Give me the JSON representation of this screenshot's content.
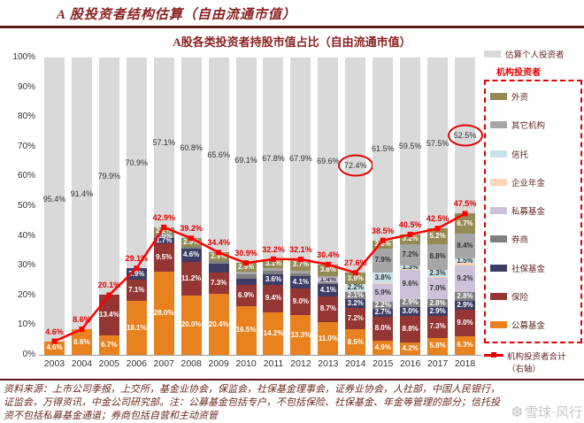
{
  "page": {
    "header_title": "A 股投资者结构估算（自由流通市值）",
    "watermark": "雪球·风行"
  },
  "chart_data": {
    "type": "stacked-bar-line",
    "title": "A股各类投资者持股市值占比（自由流通市值）",
    "y_axis": {
      "min": 0,
      "max": 100,
      "step": 10,
      "suffix": "%"
    },
    "grid": false,
    "legend_position": "right",
    "categories": [
      "2003",
      "2004",
      "2005",
      "2006",
      "2007",
      "2008",
      "2009",
      "2010",
      "2011",
      "2012",
      "2013",
      "2014",
      "2015",
      "2016",
      "2017",
      "2018"
    ],
    "stack_order_bottom_to_top": [
      "公募基金",
      "保险",
      "社保基金",
      "券商",
      "私募基金",
      "企业年金",
      "信托",
      "其它机构",
      "外资",
      "估算个人投资者"
    ],
    "colors": {
      "估算个人投资者": "#D9D9D9",
      "外资": "#948A54",
      "其它机构": "#A6A6A6",
      "信托": "#C9E2E8",
      "企业年金": "#FBD5B5",
      "私募基金": "#CCC1D9",
      "券商": "#7F7F7F",
      "社保基金": "#3D3D66",
      "保险": "#943634",
      "公募基金": "#E8821F",
      "line": "#FF0000",
      "line_label": "#E60000",
      "title": "#8B2222"
    },
    "dark_text_categories": [
      "信托",
      "企业年金",
      "私募基金",
      "其它机构"
    ],
    "bars": [
      {
        "year": "2003",
        "individual_label": "95.4%",
        "segments": [
          {
            "name": "公募基金",
            "value": 4.6,
            "label": "4.6%"
          }
        ]
      },
      {
        "year": "2004",
        "individual_label": "91.4%",
        "segments": [
          {
            "name": "公募基金",
            "value": 8.6,
            "label": "8.6%"
          }
        ]
      },
      {
        "year": "2005",
        "individual_label": "79.9%",
        "segments": [
          {
            "name": "公募基金",
            "value": 6.7,
            "label": "6.7%"
          },
          {
            "name": "保险",
            "value": 13.4,
            "label": "13.4%"
          }
        ]
      },
      {
        "year": "2006",
        "individual_label": "70.9%",
        "segments": [
          {
            "name": "公募基金",
            "value": 18.1,
            "label": "18.1%"
          },
          {
            "name": "保险",
            "value": 7.1,
            "label": "7.1%"
          },
          {
            "name": "社保基金",
            "value": 3.9,
            "label": "3.9%"
          }
        ]
      },
      {
        "year": "2007",
        "individual_label": "57.1%",
        "segments": [
          {
            "name": "公募基金",
            "value": 28.0,
            "label": "28.0%"
          },
          {
            "name": "保险",
            "value": 9.5,
            "label": "9.5%"
          },
          {
            "name": "社保基金",
            "value": 1.7,
            "label": "1.7%"
          },
          {
            "name": "券商",
            "value": 1.5,
            "label": "1.5%"
          },
          {
            "name": "外资",
            "value": 2.2,
            "label": "2.2%"
          }
        ]
      },
      {
        "year": "2008",
        "individual_label": "60.8%",
        "segments": [
          {
            "name": "公募基金",
            "value": 20.0,
            "label": "20.0%"
          },
          {
            "name": "保险",
            "value": 11.2,
            "label": "11.2%"
          },
          {
            "name": "社保基金",
            "value": 4.6,
            "label": "4.6%"
          },
          {
            "name": "券商",
            "value": 0.5,
            "label": ""
          },
          {
            "name": "外资",
            "value": 2.9,
            "label": "2.9%"
          }
        ]
      },
      {
        "year": "2009",
        "individual_label": "65.6%",
        "segments": [
          {
            "name": "公募基金",
            "value": 20.4,
            "label": "20.4%"
          },
          {
            "name": "保险",
            "value": 7.3,
            "label": "7.3%"
          },
          {
            "name": "社保基金",
            "value": 3.0,
            "label": ""
          },
          {
            "name": "券商",
            "value": 0.8,
            "label": ""
          },
          {
            "name": "外资",
            "value": 2.9,
            "label": "2.9%"
          }
        ]
      },
      {
        "year": "2010",
        "individual_label": "69.1%",
        "segments": [
          {
            "name": "公募基金",
            "value": 16.5,
            "label": "16.5%"
          },
          {
            "name": "保险",
            "value": 6.9,
            "label": "6.9%"
          },
          {
            "name": "社保基金",
            "value": 2.3,
            "label": ""
          },
          {
            "name": "券商",
            "value": 1.3,
            "label": ""
          },
          {
            "name": "其它机构",
            "value": 1.0,
            "label": ""
          },
          {
            "name": "外资",
            "value": 2.9,
            "label": "2.9%"
          }
        ]
      },
      {
        "year": "2011",
        "individual_label": "67.8%",
        "segments": [
          {
            "name": "公募基金",
            "value": 14.2,
            "label": "14.2%"
          },
          {
            "name": "保险",
            "value": 9.4,
            "label": "9.4%"
          },
          {
            "name": "社保基金",
            "value": 3.6,
            "label": "3.6%"
          },
          {
            "name": "券商",
            "value": 1.0,
            "label": ""
          },
          {
            "name": "其它机构",
            "value": 0.9,
            "label": ""
          },
          {
            "name": "外资",
            "value": 3.1,
            "label": "3.1%"
          }
        ]
      },
      {
        "year": "2012",
        "individual_label": "67.9%",
        "segments": [
          {
            "name": "公募基金",
            "value": 13.3,
            "label": "13.3%"
          },
          {
            "name": "保险",
            "value": 9.0,
            "label": "9.0%"
          },
          {
            "name": "社保基金",
            "value": 4.1,
            "label": "4.1%"
          },
          {
            "name": "券商",
            "value": 1.0,
            "label": ""
          },
          {
            "name": "其它机构",
            "value": 1.0,
            "label": ""
          },
          {
            "name": "外资",
            "value": 3.7,
            "label": "3.7%"
          }
        ]
      },
      {
        "year": "2013",
        "individual_label": "69.6%",
        "segments": [
          {
            "name": "公募基金",
            "value": 11.0,
            "label": "11.0%"
          },
          {
            "name": "保险",
            "value": 8.7,
            "label": "8.7%"
          },
          {
            "name": "社保基金",
            "value": 4.1,
            "label": "4.1%"
          },
          {
            "name": "券商",
            "value": 0.7,
            "label": ""
          },
          {
            "name": "私募基金",
            "value": 1.4,
            "label": "1.4%"
          },
          {
            "name": "其它机构",
            "value": 0.7,
            "label": ""
          },
          {
            "name": "外资",
            "value": 3.8,
            "label": "3.8%"
          }
        ]
      },
      {
        "year": "2014",
        "individual_label": "72.4%",
        "segments": [
          {
            "name": "公募基金",
            "value": 8.5,
            "label": "8.5%"
          },
          {
            "name": "保险",
            "value": 7.2,
            "label": "7.2%"
          },
          {
            "name": "社保基金",
            "value": 3.2,
            "label": "3.2%"
          },
          {
            "name": "券商",
            "value": 2.1,
            "label": "2.1%"
          },
          {
            "name": "私募基金",
            "value": 0.5,
            "label": ""
          },
          {
            "name": "信托",
            "value": 2.2,
            "label": "2.2%"
          },
          {
            "name": "外资",
            "value": 3.9,
            "label": "3.9%"
          }
        ]
      },
      {
        "year": "2015",
        "individual_label": "61.5%",
        "segments": [
          {
            "name": "公募基金",
            "value": 4.9,
            "label": "4.9%"
          },
          {
            "name": "保险",
            "value": 8.0,
            "label": "8.0%"
          },
          {
            "name": "社保基金",
            "value": 2.7,
            "label": "2.7%"
          },
          {
            "name": "券商",
            "value": 2.2,
            "label": "2.2%"
          },
          {
            "name": "私募基金",
            "value": 5.9,
            "label": "5.9%"
          },
          {
            "name": "企业年金",
            "value": 0.3,
            "label": ""
          },
          {
            "name": "信托",
            "value": 3.8,
            "label": "3.8%"
          },
          {
            "name": "其它机构",
            "value": 7.9,
            "label": "7.9%"
          },
          {
            "name": "外资",
            "value": 2.8,
            "label": "2.8%"
          }
        ]
      },
      {
        "year": "2016",
        "individual_label": "59.5%",
        "segments": [
          {
            "name": "公募基金",
            "value": 4.2,
            "label": "4.2%"
          },
          {
            "name": "保险",
            "value": 8.8,
            "label": "8.8%"
          },
          {
            "name": "社保基金",
            "value": 3.0,
            "label": "3.0%"
          },
          {
            "name": "券商",
            "value": 2.9,
            "label": "2.9%"
          },
          {
            "name": "私募基金",
            "value": 9.6,
            "label": "9.6%"
          },
          {
            "name": "企业年金",
            "value": 0.3,
            "label": ""
          },
          {
            "name": "信托",
            "value": 1.3,
            "label": "1.3%"
          },
          {
            "name": "其它机构",
            "value": 7.2,
            "label": "7.2%"
          },
          {
            "name": "外资",
            "value": 3.2,
            "label": "3.2%"
          }
        ]
      },
      {
        "year": "2017",
        "individual_label": "57.5%",
        "segments": [
          {
            "name": "公募基金",
            "value": 5.8,
            "label": "5.8%"
          },
          {
            "name": "保险",
            "value": 7.3,
            "label": "7.3%"
          },
          {
            "name": "社保基金",
            "value": 2.9,
            "label": "2.9%"
          },
          {
            "name": "券商",
            "value": 2.8,
            "label": "2.8%"
          },
          {
            "name": "私募基金",
            "value": 7.0,
            "label": "7.0%"
          },
          {
            "name": "企业年金",
            "value": 0.4,
            "label": ""
          },
          {
            "name": "信托",
            "value": 2.3,
            "label": "2.3%"
          },
          {
            "name": "其它机构",
            "value": 8.8,
            "label": "8.8%"
          },
          {
            "name": "外资",
            "value": 5.2,
            "label": "5.2%"
          }
        ]
      },
      {
        "year": "2018",
        "individual_label": "52.5%",
        "segments": [
          {
            "name": "公募基金",
            "value": 6.3,
            "label": "6.3%"
          },
          {
            "name": "保险",
            "value": 9.0,
            "label": "9.0%"
          },
          {
            "name": "社保基金",
            "value": 2.9,
            "label": "2.9%"
          },
          {
            "name": "券商",
            "value": 2.8,
            "label": "2.8%"
          },
          {
            "name": "私募基金",
            "value": 9.2,
            "label": "9.2%"
          },
          {
            "name": "企业年金",
            "value": 0.7,
            "label": ""
          },
          {
            "name": "信托",
            "value": 1.5,
            "label": "1.5%"
          },
          {
            "name": "其它机构",
            "value": 8.4,
            "label": "8.4%"
          },
          {
            "name": "外资",
            "value": 6.7,
            "label": "6.7%"
          }
        ]
      }
    ],
    "line": {
      "name": "机构投资者合计（右轴）",
      "values": [
        4.6,
        8.6,
        20.1,
        29.1,
        42.9,
        39.2,
        34.4,
        30.9,
        32.2,
        32.1,
        30.4,
        27.6,
        38.5,
        40.5,
        42.5,
        47.5
      ],
      "labels": [
        "4.6%",
        "8.6%",
        "20.1%",
        "29.1%",
        "42.9%",
        "39.2%",
        "34.4%",
        "30.9%",
        "32.2%",
        "32.1%",
        "30.4%",
        "27.6%",
        "38.5%",
        "40.5%",
        "42.5%",
        "47.5%"
      ]
    },
    "circled_years": [
      "2014",
      "2018"
    ]
  },
  "legend": {
    "individual_label": "估算个人投资者",
    "box_title": "机构投资者",
    "items": [
      "外资",
      "其它机构",
      "信托",
      "企业年金",
      "私募基金",
      "券商",
      "社保基金",
      "保险",
      "公募基金"
    ],
    "line_item_label": "机构投资者合计",
    "line_item_label2": "（右轴）"
  },
  "footer": {
    "lines": [
      "资料来源：上市公司季报，上交所，基金业协会，保监会，社保基金理事会，证券业协会，人社部，中国人民银行，",
      "证监会，万得资讯，中金公司研究部。注：公募基金包括专户，不包括保险、社保基金、年金等管理的部分；信托投",
      "资不包括私募基金通道；券商包括自营和主动资管"
    ]
  }
}
